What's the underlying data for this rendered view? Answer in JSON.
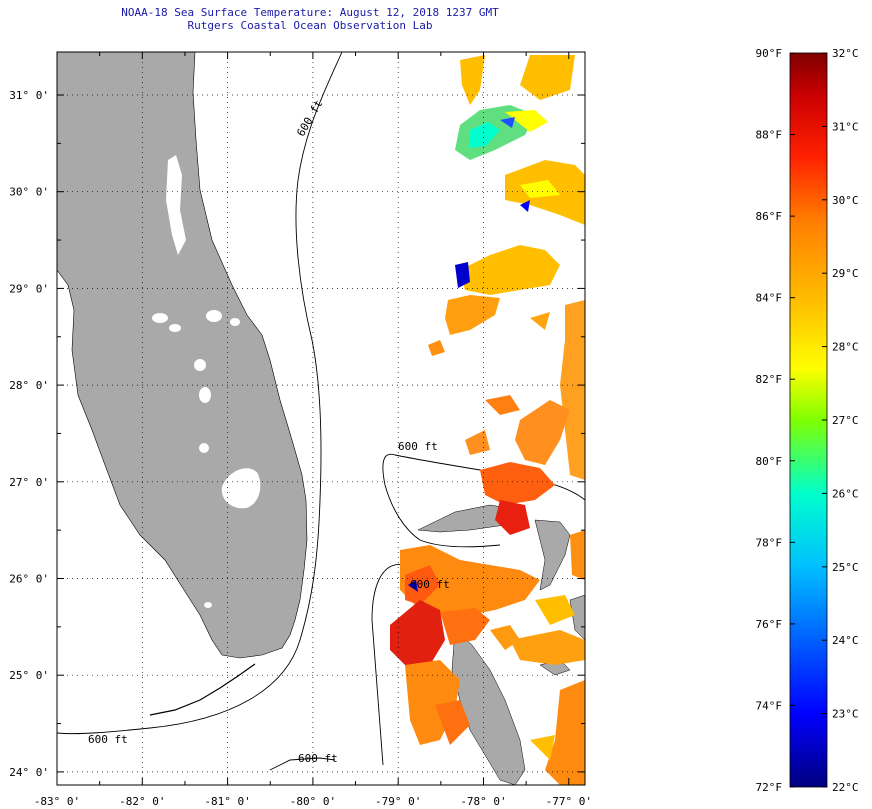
{
  "header": {
    "title": "NOAA-18 Sea Surface Temperature:  August 12, 2018 1237 GMT",
    "subtitle": "Rutgers Coastal Ocean Observation Lab"
  },
  "map": {
    "lon_ticks": [
      "-83° 0'",
      "-82° 0'",
      "-81° 0'",
      "-80° 0'",
      "-79° 0'",
      "-78° 0'",
      "-77° 0'"
    ],
    "lat_ticks": [
      "31° 0'",
      "30° 0'",
      "29° 0'",
      "28° 0'",
      "27° 0'",
      "26° 0'",
      "25° 0'",
      "24° 0'"
    ],
    "contour_label": "600 ft",
    "colors": {
      "land": "#a9a9a9",
      "ocean": "#ffffff",
      "grid": "#000000"
    }
  },
  "colorbar": {
    "f_labels": [
      "90°F",
      "88°F",
      "86°F",
      "84°F",
      "82°F",
      "80°F",
      "78°F",
      "76°F",
      "74°F",
      "72°F"
    ],
    "c_labels": [
      "32°C",
      "31°C",
      "30°C",
      "29°C",
      "28°C",
      "27°C",
      "26°C",
      "25°C",
      "24°C",
      "23°C",
      "22°C"
    ],
    "min_f": 72,
    "max_f": 90,
    "min_c": 22,
    "max_c": 32,
    "stops": [
      "#000080",
      "#0000ff",
      "#00bfff",
      "#00ffcc",
      "#7fff00",
      "#ffff00",
      "#ffbf00",
      "#ff7f00",
      "#ff2000",
      "#cc0000",
      "#800000"
    ]
  }
}
